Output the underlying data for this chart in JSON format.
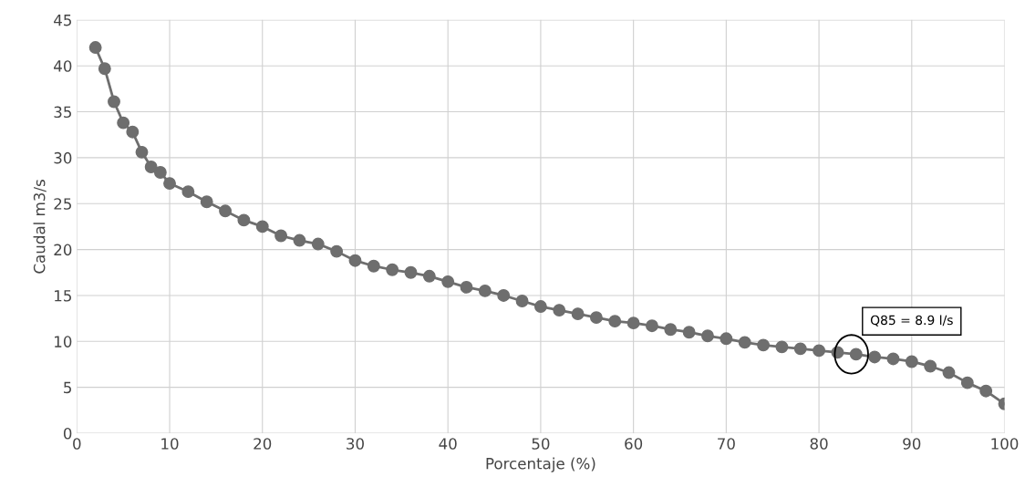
{
  "chart_data": {
    "type": "line",
    "xlabel": "Porcentaje (%)",
    "ylabel": "Caudal m3/s",
    "x": [
      2,
      3,
      4,
      5,
      6,
      7,
      8,
      9,
      10,
      12,
      14,
      16,
      18,
      20,
      22,
      24,
      26,
      28,
      30,
      32,
      34,
      36,
      38,
      40,
      42,
      44,
      46,
      48,
      50,
      52,
      54,
      56,
      58,
      60,
      62,
      64,
      66,
      68,
      70,
      72,
      74,
      76,
      78,
      80,
      82,
      84,
      86,
      88,
      90,
      92,
      94,
      96,
      98,
      100
    ],
    "series": [
      {
        "color": "#6e6e6e",
        "values": [
          42,
          39.7,
          36.1,
          33.8,
          32.8,
          30.6,
          29,
          28.4,
          27.2,
          26.3,
          25.2,
          24.2,
          23.2,
          22.5,
          21.5,
          21,
          20.6,
          19.8,
          18.8,
          18.2,
          17.8,
          17.5,
          17.1,
          16.5,
          15.9,
          15.5,
          15,
          14.4,
          13.8,
          13.4,
          13,
          12.6,
          12.2,
          12,
          11.7,
          11.3,
          11,
          10.6,
          10.3,
          9.9,
          9.6,
          9.4,
          9.2,
          9,
          8.8,
          8.6,
          8.3,
          8.1,
          7.8,
          7.3,
          6.6,
          5.5,
          4.6,
          3.2
        ]
      }
    ],
    "xlim": [
      0,
      100
    ],
    "xticks": [
      0,
      10,
      20,
      30,
      40,
      50,
      60,
      70,
      80,
      90,
      100
    ],
    "ylim": [
      0,
      45
    ],
    "yticks": [
      0,
      5,
      10,
      15,
      20,
      25,
      30,
      35,
      40,
      45
    ],
    "grid": true,
    "marker": "circle",
    "line_style": "solid",
    "annotations": [
      {
        "text": "Q85 = 8.9 l/s",
        "x": 83.5,
        "y": 8.6
      }
    ]
  }
}
